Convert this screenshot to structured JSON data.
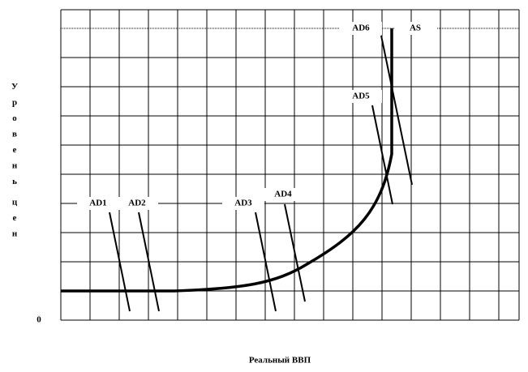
{
  "y_axis_label": "Уровень цен",
  "x_axis_label": "Реальный ВВП",
  "origin_label": "0",
  "curves": {
    "AD1": "AD1",
    "AD2": "AD2",
    "AD3": "AD3",
    "AD4": "AD4",
    "AD5": "AD5",
    "AD6": "AD6",
    "AS": "AS"
  }
}
